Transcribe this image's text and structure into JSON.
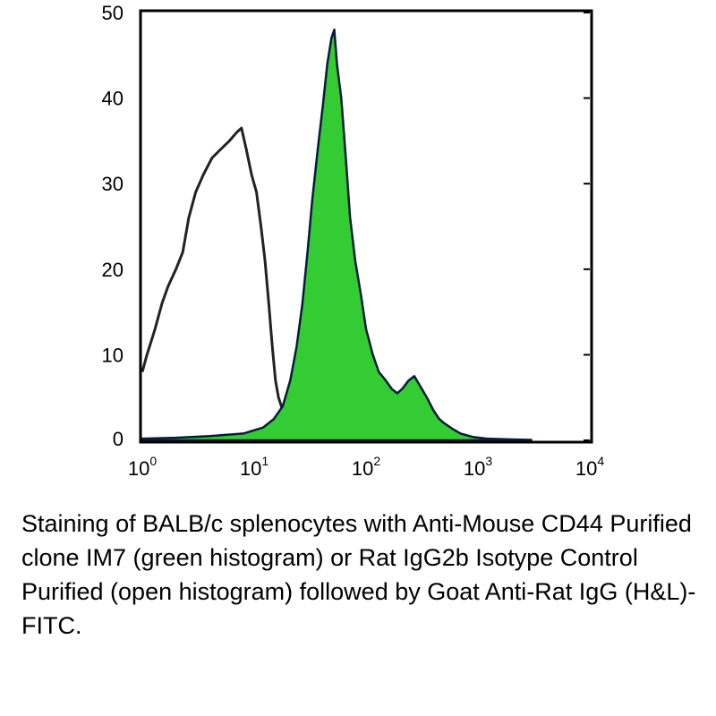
{
  "caption": "Staining of BALB/c splenocytes with Anti-Mouse CD44 Purified clone IM7 (green histogram) or Rat IgG2b Isotype Control Purified (open histogram) followed by Goat Anti-Rat IgG (H&L)-FITC.",
  "chart_data": {
    "type": "area",
    "title": "",
    "xlabel": "",
    "ylabel": "",
    "xscale": "log",
    "xlim": [
      1,
      10000
    ],
    "ylim": [
      0,
      50
    ],
    "grid": false,
    "legend": "none",
    "x_ticks": [
      {
        "base": "10",
        "exp": "0",
        "value": 1
      },
      {
        "base": "10",
        "exp": "1",
        "value": 10
      },
      {
        "base": "10",
        "exp": "2",
        "value": 100
      },
      {
        "base": "10",
        "exp": "3",
        "value": 1000
      },
      {
        "base": "10",
        "exp": "4",
        "value": 10000
      }
    ],
    "y_ticks": [
      "0",
      "10",
      "20",
      "30",
      "40",
      "50"
    ],
    "series": [
      {
        "style": "open",
        "color": "#222222",
        "points": [
          [
            1.0,
            8
          ],
          [
            1.1,
            10
          ],
          [
            1.3,
            13
          ],
          [
            1.5,
            16
          ],
          [
            1.7,
            18
          ],
          [
            2.0,
            20
          ],
          [
            2.3,
            22
          ],
          [
            2.6,
            26
          ],
          [
            3.0,
            29
          ],
          [
            3.5,
            31
          ],
          [
            4.2,
            33
          ],
          [
            5.0,
            34
          ],
          [
            6.0,
            35
          ],
          [
            7.0,
            36
          ],
          [
            7.7,
            36.5
          ],
          [
            8.5,
            34
          ],
          [
            9.5,
            31
          ],
          [
            10.5,
            29
          ],
          [
            11.5,
            25
          ],
          [
            12.5,
            21
          ],
          [
            13.5,
            16
          ],
          [
            14.5,
            11
          ],
          [
            15.5,
            7
          ],
          [
            16.5,
            5
          ],
          [
            18,
            3.5
          ],
          [
            20,
            2.5
          ],
          [
            23,
            2
          ]
        ]
      },
      {
        "style": "filled",
        "color": "#33cc33",
        "points": [
          [
            1.0,
            0.2
          ],
          [
            2.0,
            0.3
          ],
          [
            4.0,
            0.5
          ],
          [
            8.0,
            0.8
          ],
          [
            12,
            1.5
          ],
          [
            15,
            2.5
          ],
          [
            18,
            4
          ],
          [
            21,
            7
          ],
          [
            24,
            11
          ],
          [
            27,
            16
          ],
          [
            30,
            22
          ],
          [
            33,
            28
          ],
          [
            37,
            34
          ],
          [
            41,
            39
          ],
          [
            45,
            44
          ],
          [
            49,
            47
          ],
          [
            52,
            48
          ],
          [
            55,
            44
          ],
          [
            60,
            40
          ],
          [
            66,
            33
          ],
          [
            72,
            26
          ],
          [
            80,
            21
          ],
          [
            90,
            17
          ],
          [
            100,
            13
          ],
          [
            115,
            10
          ],
          [
            130,
            8
          ],
          [
            150,
            7
          ],
          [
            170,
            6
          ],
          [
            190,
            5.5
          ],
          [
            210,
            6
          ],
          [
            240,
            7
          ],
          [
            270,
            7.5
          ],
          [
            300,
            6.5
          ],
          [
            350,
            5
          ],
          [
            400,
            3.5
          ],
          [
            450,
            2.5
          ],
          [
            500,
            2
          ],
          [
            600,
            1.3
          ],
          [
            700,
            0.8
          ],
          [
            900,
            0.4
          ],
          [
            1200,
            0.2
          ],
          [
            2000,
            0.1
          ],
          [
            3000,
            0.05
          ]
        ]
      }
    ]
  }
}
